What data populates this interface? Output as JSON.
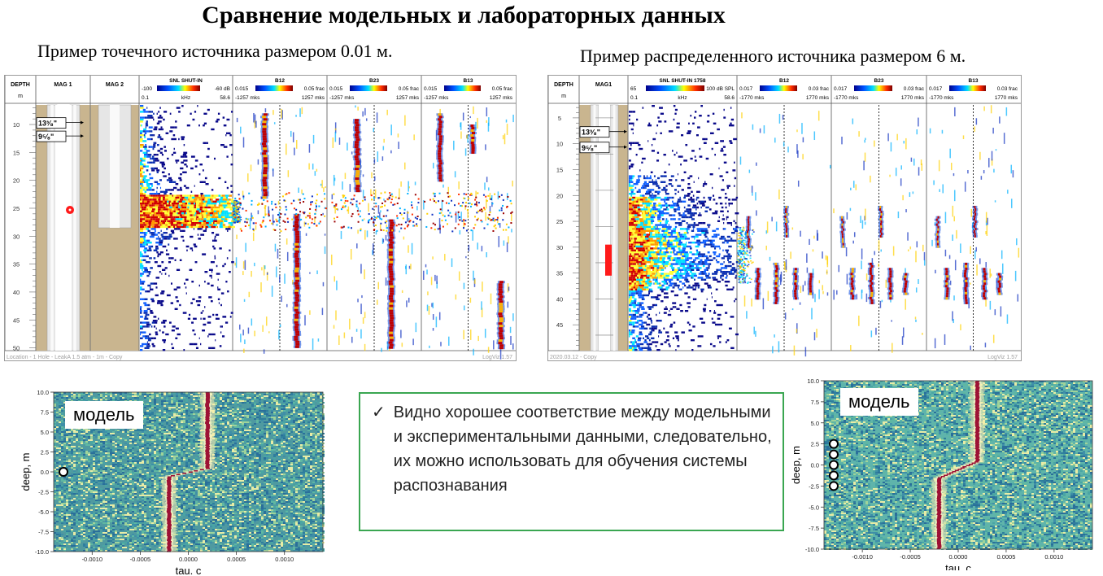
{
  "slide": {
    "title": "Сравнение модельных и лабораторных данных",
    "left_subtitle": "Пример точечного источника размером 0.01 м.",
    "right_subtitle": "Пример распределенного источника размером 6 м.",
    "conclusion": {
      "icon": "checkmark-icon",
      "text": "Видно хорошее соответствие между модельными и экспериментальными данными, следовательно, их можно использовать для обучения системы распознавания"
    }
  },
  "left_log": {
    "headers": {
      "depth": "DEPTH",
      "depth_unit": "m",
      "mag1": "MAG 1",
      "mag2": "MAG 2",
      "snl": "SNL SHUT-IN",
      "snl_min": "-100",
      "snl_max": "-60 dB",
      "snl_f_min": "0.1",
      "snl_f_unit": "kHz",
      "snl_f_max": "58.6",
      "tracks": [
        {
          "name": "B12",
          "cmin": "0.015",
          "cmax": "0.05 frac",
          "tmin": "-1257 mks",
          "tmax": "1257 mks"
        },
        {
          "name": "B23",
          "cmin": "0.015",
          "cmax": "0.05 frac",
          "tmin": "-1257 mks",
          "tmax": "1257 mks"
        },
        {
          "name": "B13",
          "cmin": "0.015",
          "cmax": "0.05 frac",
          "tmin": "-1257 mks",
          "tmax": "1257 mks"
        }
      ]
    },
    "depth_ticks": [
      "10",
      "15",
      "20",
      "25",
      "30",
      "35",
      "40",
      "45",
      "50"
    ],
    "casing_labels": [
      "13³⁄₈\"",
      "9⁵⁄₈\""
    ],
    "footer_left": "Location - 1 Hole - LeakA 1.5 atm - 1m - Copy",
    "footer_right": "LogViz 1.57"
  },
  "right_log": {
    "headers": {
      "depth": "DEPTH",
      "depth_unit": "m",
      "mag1": "MAG1",
      "snl": "SNL SHUT-IN 1758",
      "snl_min": "65",
      "snl_max": "100 dB SPL",
      "snl_f_min": "0.1",
      "snl_f_unit": "kHz",
      "snl_f_max": "58.6",
      "tracks": [
        {
          "name": "B12",
          "cmin": "0.017",
          "cmax": "0.03 frac",
          "tmin": "-1770 mks",
          "tmax": "1770 mks"
        },
        {
          "name": "B23",
          "cmin": "0.017",
          "cmax": "0.03 frac",
          "tmin": "-1770 mks",
          "tmax": "1770 mks"
        },
        {
          "name": "B13",
          "cmin": "0.017",
          "cmax": "0.03 frac",
          "tmin": "-1770 mks",
          "tmax": "1770 mks"
        }
      ]
    },
    "depth_ticks": [
      "5",
      "10",
      "15",
      "20",
      "25",
      "30",
      "35",
      "40",
      "45"
    ],
    "casing_labels": [
      "13³⁄₈\"",
      "9⁵⁄₈\""
    ],
    "footer_left": "2020.03.12 - Copy",
    "footer_right": "LogViz 1.57"
  },
  "chart_data": [
    {
      "type": "heatmap",
      "label": "модель",
      "xlabel": "tau, c",
      "ylabel": "deep, m",
      "xlim": [
        -0.0014,
        0.0014
      ],
      "ylim": [
        -10.0,
        10.0
      ],
      "xticks": [
        "-0.0010",
        "-0.0005",
        "0.0000",
        "0.0005",
        "0.0010"
      ],
      "yticks": [
        "10.0",
        "7.5",
        "5.0",
        "2.5",
        "0.0",
        "-2.5",
        "-5.0",
        "-7.5",
        "-10.0"
      ],
      "source_depths": [
        0.0
      ],
      "trace": {
        "tau_above": 0.0002,
        "tau_below": -0.0002,
        "transition": [
          -0.5,
          0.5
        ]
      },
      "colors": {
        "bg": "#4f9aa0",
        "ridge": "#9d1235",
        "halo": "#fff3b0"
      }
    },
    {
      "type": "heatmap",
      "label": "модель",
      "xlabel": "tau, c",
      "ylabel": "deep, m",
      "xlim": [
        -0.0014,
        0.0014
      ],
      "ylim": [
        -10.0,
        10.0
      ],
      "xticks": [
        "-0.0010",
        "-0.0005",
        "0.0000",
        "0.0005",
        "0.0010"
      ],
      "yticks": [
        "10.0",
        "7.5",
        "5.0",
        "2.5",
        "0.0",
        "-2.5",
        "-5.0",
        "-7.5",
        "-10.0"
      ],
      "source_depths": [
        2.5,
        1.25,
        0.0,
        -1.25,
        -2.5
      ],
      "trace": {
        "tau_above": 0.0002,
        "tau_below": -0.0002,
        "transition": [
          -1.5,
          0.5
        ]
      },
      "colors": {
        "bg": "#5fb4ab",
        "ridge": "#9d1235",
        "halo": "#fff3b0"
      }
    }
  ]
}
